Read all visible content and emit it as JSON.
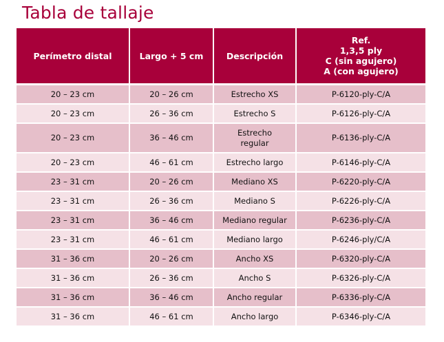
{
  "title": "Tabla de tallaje",
  "headers": {
    "col1": "Perímetro distal",
    "col2": "Largo + 5 cm",
    "col3": "Descripción",
    "col4_lines": [
      "Ref.",
      "1,3,5 ply",
      "C (sin agujero)",
      "A (con agujero)"
    ]
  },
  "rows": [
    {
      "perimetro": "20 – 23 cm",
      "largo": "20 – 26 cm",
      "descripcion": "Estrecho XS",
      "ref": "P-6120-ply-C/A"
    },
    {
      "perimetro": "20 – 23 cm",
      "largo": "26 – 36 cm",
      "descripcion": "Estrecho S",
      "ref": "P-6126-ply-C/A"
    },
    {
      "perimetro": "20 – 23 cm",
      "largo": "36 – 46 cm",
      "descripcion": "Estrecho regular",
      "ref": "P-6136-ply-C/A"
    },
    {
      "perimetro": "20 – 23 cm",
      "largo": "46 – 61 cm",
      "descripcion": "Estrecho largo",
      "ref": "P-6146-ply-C/A"
    },
    {
      "perimetro": "23 – 31 cm",
      "largo": "20 – 26 cm",
      "descripcion": "Mediano XS",
      "ref": "P-6220-ply-C/A"
    },
    {
      "perimetro": "23 – 31 cm",
      "largo": "26 – 36 cm",
      "descripcion": "Mediano S",
      "ref": "P-6226-ply-C/A"
    },
    {
      "perimetro": "23 – 31 cm",
      "largo": "36 – 46 cm",
      "descripcion": "Mediano regular",
      "ref": "P-6236-ply-C/A"
    },
    {
      "perimetro": "23 – 31 cm",
      "largo": "46 – 61 cm",
      "descripcion": "Mediano largo",
      "ref": "P-6246-ply/C/A"
    },
    {
      "perimetro": "31 – 36 cm",
      "largo": "20 – 26 cm",
      "descripcion": "Ancho XS",
      "ref": "P-6320-ply-C/A"
    },
    {
      "perimetro": "31 – 36 cm",
      "largo": "26 – 36 cm",
      "descripcion": "Ancho S",
      "ref": "P-6326-ply-C/A"
    },
    {
      "perimetro": "31 – 36 cm",
      "largo": "36 – 46 cm",
      "descripcion": "Ancho regular",
      "ref": "P-6336-ply-C/A"
    },
    {
      "perimetro": "31 – 36 cm",
      "largo": "46 – 61 cm",
      "descripcion": "Ancho largo",
      "ref": "P-6346-ply-C/A"
    }
  ],
  "colors": {
    "accent": "#a8003a",
    "row_dark": "#e6bfca",
    "row_light": "#f5e1e6"
  }
}
